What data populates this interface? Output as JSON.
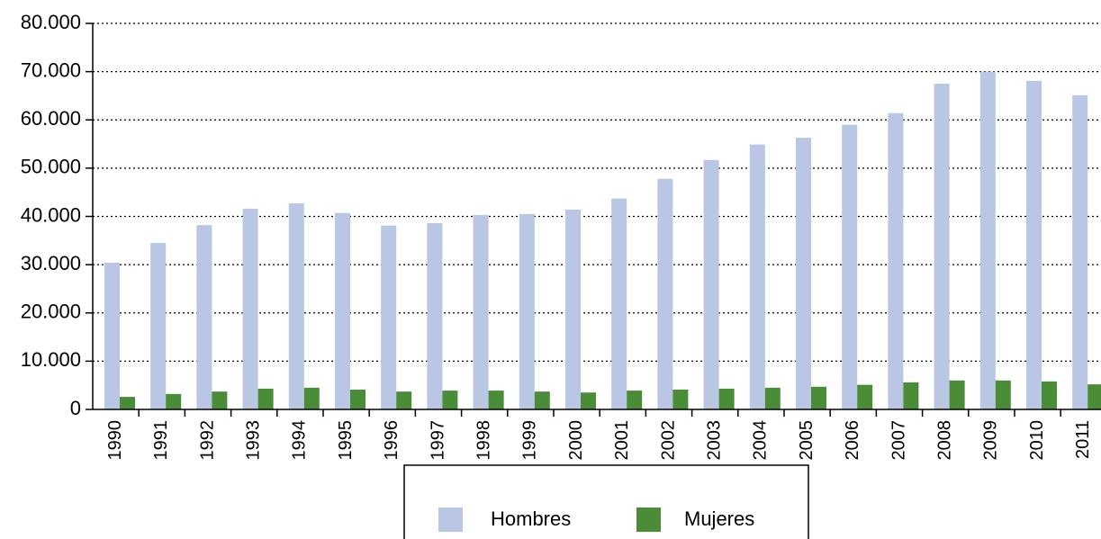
{
  "chart_data": {
    "type": "bar",
    "categories": [
      "1990",
      "1991",
      "1992",
      "1993",
      "1994",
      "1995",
      "1996",
      "1997",
      "1998",
      "1999",
      "2000",
      "2001",
      "2002",
      "2003",
      "2004",
      "2005",
      "2006",
      "2007",
      "2008",
      "2009",
      "2010",
      "2011"
    ],
    "series": [
      {
        "name": "Hombres",
        "color": "#b9c7e4",
        "values": [
          30400,
          34500,
          38200,
          41600,
          42700,
          40700,
          38100,
          38600,
          40300,
          40500,
          41400,
          43700,
          47800,
          51700,
          54900,
          56300,
          59000,
          61400,
          67500,
          70000,
          68100,
          65100
        ]
      },
      {
        "name": "Mujeres",
        "color": "#4a8c38",
        "values": [
          2600,
          3200,
          3700,
          4300,
          4500,
          4100,
          3700,
          3900,
          3900,
          3700,
          3500,
          3900,
          4100,
          4300,
          4500,
          4700,
          5100,
          5600,
          6000,
          6000,
          5800,
          5200
        ]
      }
    ],
    "ylim": [
      0,
      80000
    ],
    "yticks": [
      0,
      {
        "value": 10000,
        "label": "10.000"
      },
      {
        "value": 20000,
        "label": "20.000"
      },
      {
        "value": 30000,
        "label": "30.000"
      },
      {
        "value": 40000,
        "label": "40.000"
      },
      {
        "value": 50000,
        "label": "50.000"
      },
      {
        "value": 60000,
        "label": "60.000"
      },
      {
        "value": 70000,
        "label": "70.000"
      },
      {
        "value": 80000,
        "label": "80.000"
      }
    ],
    "grid": true,
    "legend": "bottom"
  }
}
